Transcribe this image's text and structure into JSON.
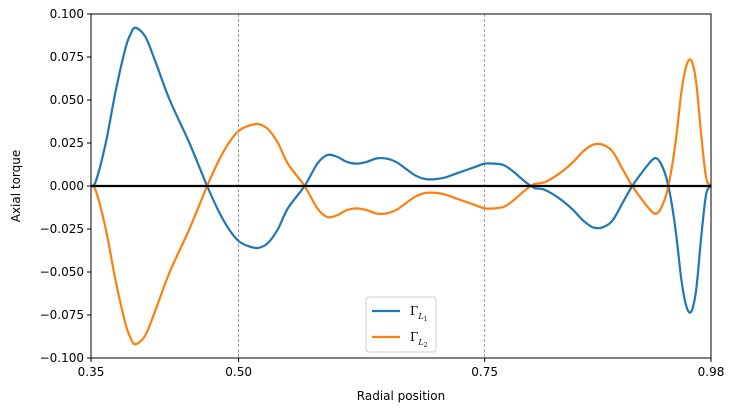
{
  "chart_data": {
    "type": "line",
    "title": "",
    "xlabel": "Radial position",
    "ylabel": "Axial torque",
    "xlim": [
      0.35,
      0.98
    ],
    "ylim": [
      -0.1,
      0.1
    ],
    "xticks": [
      "0.35",
      "0.50",
      "0.75",
      "0.98"
    ],
    "xtick_values": [
      0.35,
      0.5,
      0.75,
      0.98
    ],
    "yticks": [
      "0.100",
      "0.075",
      "0.050",
      "0.025",
      "0.000",
      "−0.025",
      "−0.050",
      "−0.075",
      "−0.100"
    ],
    "ytick_values": [
      0.1,
      0.075,
      0.05,
      0.025,
      0.0,
      -0.025,
      -0.05,
      -0.075,
      -0.1
    ],
    "vlines": [
      0.5,
      0.75
    ],
    "hline": 0.0,
    "grid": false,
    "legend_position": "bottom-center",
    "legend": {
      "gamma": "Γ",
      "sub_letter": "L",
      "items": [
        {
          "sub_index": "1",
          "color": "#1f77b4"
        },
        {
          "sub_index": "2",
          "color": "#ff7f0e"
        }
      ]
    },
    "series": [
      {
        "color": "#1f77b4",
        "x": [
          0.35,
          0.355,
          0.365,
          0.375,
          0.385,
          0.39,
          0.395,
          0.405,
          0.415,
          0.43,
          0.45,
          0.468,
          0.48,
          0.49,
          0.5,
          0.51,
          0.52,
          0.53,
          0.54,
          0.55,
          0.567,
          0.58,
          0.59,
          0.6,
          0.61,
          0.62,
          0.63,
          0.64,
          0.65,
          0.66,
          0.67,
          0.68,
          0.69,
          0.7,
          0.71,
          0.72,
          0.73,
          0.74,
          0.75,
          0.76,
          0.77,
          0.78,
          0.79,
          0.8,
          0.81,
          0.82,
          0.83,
          0.84,
          0.85,
          0.86,
          0.87,
          0.88,
          0.89,
          0.9,
          0.91,
          0.92,
          0.925,
          0.93,
          0.935,
          0.94,
          0.945,
          0.95,
          0.955,
          0.96,
          0.965,
          0.97,
          0.975,
          0.98
        ],
        "y": [
          0.0,
          0.003,
          0.025,
          0.055,
          0.08,
          0.088,
          0.092,
          0.087,
          0.073,
          0.05,
          0.025,
          0.0,
          -0.015,
          -0.025,
          -0.032,
          -0.035,
          -0.036,
          -0.033,
          -0.025,
          -0.013,
          0.0,
          0.013,
          0.018,
          0.017,
          0.014,
          0.013,
          0.014,
          0.016,
          0.016,
          0.014,
          0.01,
          0.006,
          0.004,
          0.004,
          0.005,
          0.007,
          0.009,
          0.011,
          0.013,
          0.013,
          0.012,
          0.008,
          0.003,
          -0.001,
          -0.002,
          -0.005,
          -0.009,
          -0.014,
          -0.02,
          -0.024,
          -0.024,
          -0.02,
          -0.01,
          0.0,
          0.008,
          0.015,
          0.016,
          0.012,
          0.004,
          -0.01,
          -0.03,
          -0.055,
          -0.07,
          -0.073,
          -0.06,
          -0.03,
          -0.005,
          0.0
        ]
      },
      {
        "color": "#ff7f0e",
        "x": [
          0.35,
          0.355,
          0.365,
          0.375,
          0.385,
          0.39,
          0.395,
          0.405,
          0.415,
          0.43,
          0.45,
          0.468,
          0.48,
          0.49,
          0.5,
          0.51,
          0.52,
          0.53,
          0.54,
          0.55,
          0.567,
          0.58,
          0.59,
          0.6,
          0.61,
          0.62,
          0.63,
          0.64,
          0.65,
          0.66,
          0.67,
          0.68,
          0.69,
          0.7,
          0.71,
          0.72,
          0.73,
          0.74,
          0.75,
          0.76,
          0.77,
          0.78,
          0.79,
          0.8,
          0.81,
          0.82,
          0.83,
          0.84,
          0.85,
          0.86,
          0.87,
          0.88,
          0.89,
          0.9,
          0.91,
          0.92,
          0.925,
          0.93,
          0.935,
          0.94,
          0.945,
          0.95,
          0.955,
          0.96,
          0.965,
          0.97,
          0.975,
          0.98
        ],
        "y": [
          0.0,
          -0.003,
          -0.025,
          -0.055,
          -0.08,
          -0.088,
          -0.092,
          -0.087,
          -0.073,
          -0.05,
          -0.025,
          0.0,
          0.015,
          0.025,
          0.032,
          0.035,
          0.036,
          0.033,
          0.025,
          0.013,
          0.0,
          -0.013,
          -0.018,
          -0.017,
          -0.014,
          -0.013,
          -0.014,
          -0.016,
          -0.016,
          -0.014,
          -0.01,
          -0.006,
          -0.004,
          -0.004,
          -0.005,
          -0.007,
          -0.009,
          -0.011,
          -0.013,
          -0.013,
          -0.012,
          -0.008,
          -0.003,
          0.001,
          0.002,
          0.005,
          0.009,
          0.014,
          0.02,
          0.024,
          0.024,
          0.02,
          0.01,
          0.0,
          -0.008,
          -0.015,
          -0.016,
          -0.012,
          -0.004,
          0.01,
          0.03,
          0.055,
          0.07,
          0.073,
          0.06,
          0.03,
          0.005,
          0.0
        ]
      }
    ]
  }
}
